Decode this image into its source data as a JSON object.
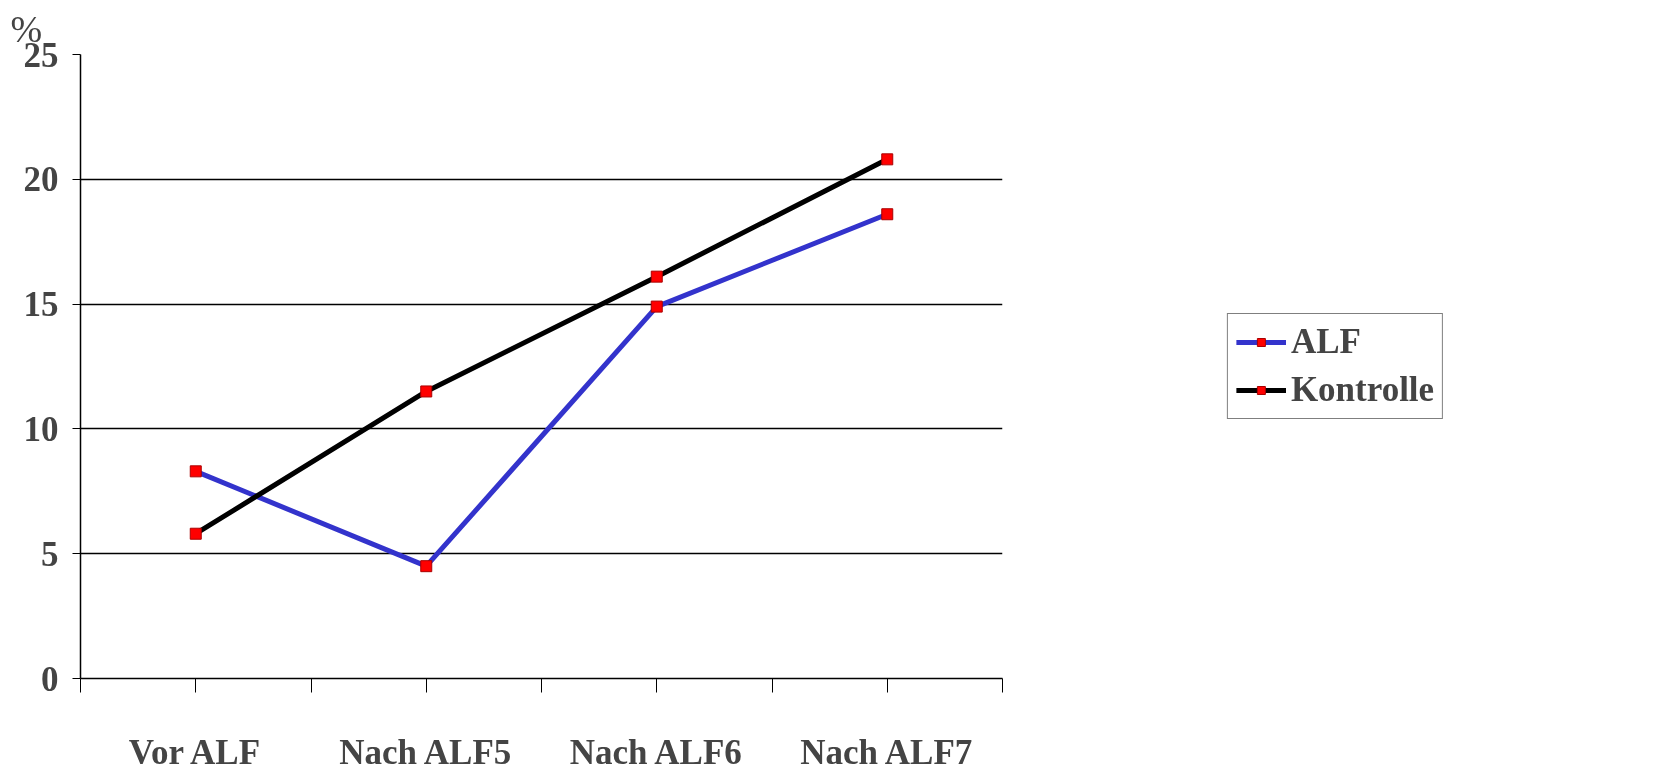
{
  "chart_data": {
    "type": "line",
    "ylabel": "%",
    "categories": [
      "Vor ALF",
      "Nach ALF5",
      "Nach ALF6",
      "Nach ALF7"
    ],
    "series": [
      {
        "name": "ALF",
        "color": "#3333cc",
        "values": [
          8.3,
          4.5,
          14.9,
          18.6
        ]
      },
      {
        "name": "Kontrolle",
        "color": "#000000",
        "values": [
          5.8,
          11.5,
          16.1,
          20.8
        ]
      }
    ],
    "ylim": [
      0,
      25
    ],
    "yticks": [
      0,
      5,
      10,
      15,
      20,
      25
    ],
    "grid": "y",
    "legend": "right",
    "marker": "square",
    "line_style": "solid"
  }
}
